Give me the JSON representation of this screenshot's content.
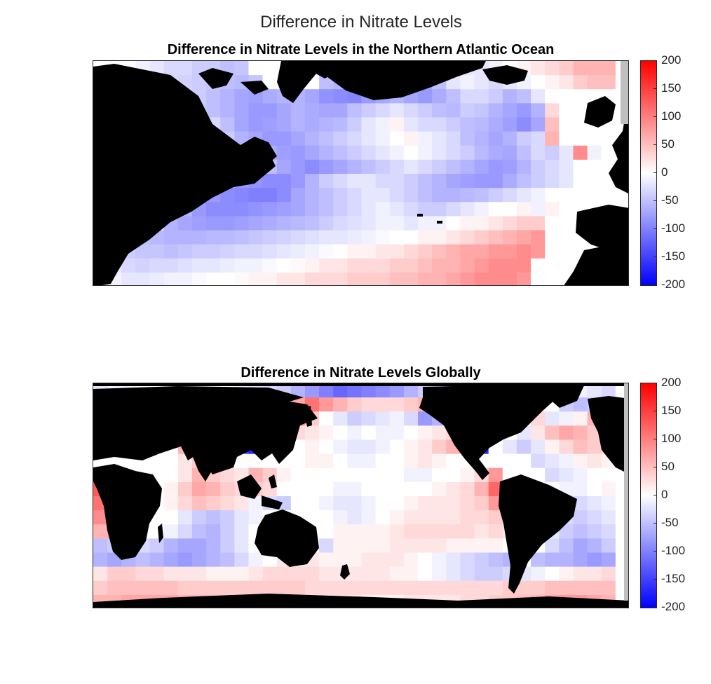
{
  "figure": {
    "title": "Difference in Nitrate Levels"
  },
  "colormap": {
    "low": "#0000ff",
    "mid": "#ffffff",
    "high": "#ff0000",
    "land": "#000000",
    "nodata": "#bfbfbf"
  },
  "chart_data": [
    {
      "type": "heatmap",
      "title": "Difference in Nitrate Levels in the Northern Atlantic Ocean",
      "xlabel": "",
      "ylabel": "",
      "clim": [
        -200,
        200
      ],
      "colorbar_ticks": [
        "200",
        "150",
        "100",
        "50",
        "0",
        "-50",
        "-100",
        "-150",
        "-200"
      ],
      "grid_cols": 38,
      "grid_rows": 16,
      "values": [
        [
          0,
          0,
          0,
          -10,
          -20,
          -30,
          -30,
          -40,
          -40,
          -50,
          -45,
          0,
          0,
          0,
          0,
          0,
          -40,
          -50,
          -60,
          -50,
          -40,
          -30,
          -20,
          -20,
          -10,
          -10,
          -20,
          -20,
          -10,
          0,
          10,
          20,
          30,
          40,
          60,
          60,
          60,
          0
        ],
        [
          0,
          0,
          0,
          0,
          -15,
          -30,
          -35,
          -40,
          -45,
          -50,
          -55,
          -45,
          0,
          0,
          0,
          0,
          -50,
          -60,
          -80,
          -80,
          -70,
          -60,
          -60,
          -70,
          -50,
          -20,
          -10,
          -20,
          -30,
          -20,
          -10,
          0,
          10,
          20,
          40,
          50,
          50,
          0
        ],
        [
          0,
          0,
          0,
          0,
          0,
          0,
          -30,
          -40,
          -50,
          -60,
          -70,
          -75,
          -65,
          -60,
          -60,
          -70,
          -85,
          -90,
          -95,
          -80,
          -70,
          -60,
          -70,
          -80,
          -65,
          -50,
          -30,
          -30,
          -40,
          -60,
          -50,
          -20,
          0,
          0,
          0,
          0,
          0,
          0
        ],
        [
          0,
          0,
          0,
          0,
          0,
          0,
          -20,
          -40,
          -50,
          -60,
          -70,
          -80,
          -80,
          -70,
          -60,
          -65,
          -70,
          -70,
          -50,
          -40,
          -30,
          -20,
          -30,
          -40,
          -50,
          -55,
          -40,
          -45,
          -60,
          -70,
          -80,
          -60,
          30,
          0,
          0,
          0,
          0,
          0
        ],
        [
          0,
          0,
          0,
          0,
          0,
          0,
          0,
          0,
          -30,
          -50,
          -70,
          -80,
          -75,
          -70,
          -60,
          -65,
          -60,
          -55,
          -40,
          -20,
          -10,
          10,
          -20,
          -30,
          -30,
          -40,
          -50,
          -55,
          -65,
          -75,
          -90,
          -70,
          50,
          0,
          0,
          0,
          0,
          0
        ],
        [
          0,
          0,
          0,
          0,
          0,
          0,
          0,
          0,
          -20,
          -40,
          -60,
          -70,
          -80,
          -80,
          -70,
          -60,
          -50,
          -40,
          -30,
          -20,
          -10,
          0,
          10,
          -10,
          -20,
          -30,
          -50,
          -60,
          -70,
          -60,
          -40,
          -30,
          60,
          0,
          0,
          0,
          0,
          0
        ],
        [
          0,
          0,
          0,
          0,
          0,
          0,
          0,
          20,
          30,
          10,
          -30,
          -50,
          -65,
          -75,
          -80,
          -70,
          -60,
          -50,
          -40,
          -30,
          -20,
          -10,
          0,
          -10,
          -20,
          -30,
          -40,
          -55,
          -65,
          -70,
          -50,
          -30,
          -40,
          -20,
          90,
          -10,
          0,
          0
        ],
        [
          0,
          0,
          0,
          0,
          0,
          0,
          30,
          40,
          30,
          20,
          0,
          -30,
          -50,
          -70,
          -80,
          -90,
          -80,
          -70,
          -60,
          -50,
          -40,
          -30,
          -20,
          -30,
          -40,
          -50,
          -60,
          -70,
          -80,
          -75,
          -60,
          -40,
          -30,
          -20,
          0,
          0,
          0,
          0
        ],
        [
          0,
          0,
          0,
          0,
          0,
          10,
          10,
          0,
          -40,
          -70,
          -80,
          -85,
          -90,
          -90,
          -80,
          -60,
          -40,
          -30,
          -20,
          -20,
          -30,
          -30,
          -40,
          -50,
          -60,
          -70,
          -75,
          -80,
          -80,
          -65,
          -50,
          -40,
          -30,
          -20,
          0,
          0,
          0,
          0
        ],
        [
          0,
          0,
          0,
          0,
          10,
          20,
          -10,
          -50,
          -80,
          -90,
          -95,
          -100,
          -100,
          -90,
          -70,
          -60,
          -50,
          -40,
          -30,
          -20,
          -20,
          -30,
          -40,
          -50,
          -60,
          -60,
          -55,
          -50,
          -40,
          -30,
          -20,
          -10,
          0,
          0,
          0,
          0,
          0,
          0
        ],
        [
          0,
          0,
          0,
          10,
          20,
          -10,
          -60,
          -80,
          -90,
          -90,
          -90,
          -85,
          -80,
          -75,
          -70,
          -60,
          -50,
          -40,
          -30,
          -20,
          -10,
          -20,
          -30,
          -40,
          -40,
          -30,
          -20,
          -10,
          0,
          0,
          10,
          -10,
          10,
          0,
          0,
          0,
          0,
          0
        ],
        [
          0,
          0,
          0,
          20,
          -20,
          -60,
          -70,
          -75,
          -80,
          -80,
          -75,
          -70,
          -65,
          -60,
          -55,
          -50,
          -40,
          -30,
          -25,
          -20,
          -10,
          -10,
          -20,
          -10,
          -10,
          0,
          10,
          10,
          20,
          30,
          40,
          40,
          0,
          0,
          0,
          0,
          0,
          0
        ],
        [
          0,
          0,
          -20,
          -50,
          -55,
          -60,
          -60,
          -60,
          -55,
          -55,
          -50,
          -45,
          -40,
          -35,
          -30,
          -25,
          -20,
          -20,
          -15,
          -10,
          -5,
          0,
          0,
          10,
          10,
          20,
          30,
          40,
          50,
          60,
          70,
          80,
          0,
          0,
          0,
          0,
          0,
          0
        ],
        [
          0,
          0,
          -40,
          -45,
          -45,
          -50,
          -45,
          -40,
          -40,
          -35,
          -30,
          -30,
          -25,
          -20,
          -15,
          -10,
          -5,
          0,
          10,
          10,
          20,
          20,
          30,
          40,
          50,
          60,
          70,
          70,
          80,
          80,
          90,
          80,
          0,
          0,
          0,
          0,
          0,
          0
        ],
        [
          0,
          -20,
          -30,
          -35,
          -30,
          -30,
          -25,
          -20,
          -20,
          -15,
          -10,
          -10,
          -5,
          0,
          5,
          10,
          20,
          20,
          30,
          30,
          30,
          40,
          40,
          50,
          60,
          60,
          70,
          80,
          90,
          90,
          90,
          0,
          0,
          0,
          0,
          0,
          0,
          0
        ],
        [
          40,
          -10,
          -20,
          -20,
          -15,
          -10,
          -10,
          -5,
          0,
          0,
          5,
          10,
          10,
          20,
          20,
          30,
          30,
          30,
          40,
          40,
          40,
          50,
          50,
          60,
          60,
          70,
          80,
          90,
          90,
          90,
          80,
          0,
          0,
          0,
          0,
          0,
          0,
          0
        ]
      ]
    },
    {
      "type": "heatmap",
      "title": "Difference in Nitrate Levels Globally",
      "xlabel": "",
      "ylabel": "",
      "clim": [
        -200,
        200
      ],
      "colorbar_ticks": [
        "200",
        "150",
        "100",
        "50",
        "0",
        "-50",
        "-100",
        "-150",
        "-200"
      ],
      "grid_cols": 38,
      "grid_rows": 16,
      "values": [
        [
          -20,
          -10,
          -10,
          0,
          0,
          0,
          0,
          0,
          0,
          0,
          -10,
          -20,
          -30,
          -40,
          -60,
          -80,
          -100,
          -120,
          -110,
          -100,
          -90,
          -80,
          -60,
          -40,
          -30,
          -30,
          -40,
          -50,
          -60,
          -60,
          -50,
          -30,
          -20,
          -10,
          -10,
          -20,
          -30,
          0
        ],
        [
          0,
          0,
          0,
          0,
          0,
          0,
          0,
          0,
          0,
          0,
          0,
          0,
          0,
          0,
          70,
          110,
          80,
          60,
          40,
          30,
          30,
          30,
          40,
          60,
          80,
          90,
          80,
          70,
          0,
          0,
          0,
          0,
          0,
          -40,
          -50,
          -40,
          20,
          0
        ],
        [
          0,
          0,
          0,
          0,
          0,
          0,
          0,
          0,
          0,
          0,
          0,
          0,
          0,
          0,
          80,
          40,
          0,
          -20,
          -40,
          -30,
          -20,
          -10,
          -30,
          -80,
          -60,
          -40,
          -20,
          0,
          0,
          0,
          0,
          30,
          -20,
          -10,
          10,
          60,
          40,
          0
        ],
        [
          0,
          0,
          0,
          0,
          0,
          0,
          0,
          -150,
          0,
          0,
          -180,
          -180,
          0,
          0,
          30,
          20,
          10,
          0,
          -10,
          0,
          -10,
          -10,
          0,
          10,
          20,
          30,
          20,
          0,
          0,
          0,
          -20,
          20,
          50,
          70,
          60,
          40,
          20,
          0
        ],
        [
          0,
          0,
          0,
          0,
          0,
          0,
          60,
          0,
          0,
          0,
          -160,
          -170,
          0,
          0,
          0,
          10,
          0,
          -10,
          -20,
          -20,
          -10,
          0,
          10,
          20,
          40,
          60,
          40,
          -170,
          0,
          -20,
          -40,
          -20,
          10,
          30,
          50,
          40,
          30,
          0
        ],
        [
          0,
          0,
          0,
          0,
          0,
          0,
          20,
          40,
          10,
          0,
          0,
          0,
          0,
          0,
          0,
          10,
          10,
          0,
          -10,
          -10,
          0,
          0,
          10,
          20,
          10,
          0,
          0,
          0,
          0,
          0,
          0,
          -30,
          -20,
          -10,
          10,
          20,
          10,
          0
        ],
        [
          120,
          0,
          0,
          0,
          0,
          0,
          20,
          60,
          40,
          30,
          20,
          60,
          40,
          10,
          0,
          0,
          0,
          0,
          0,
          0,
          0,
          0,
          -10,
          -10,
          0,
          0,
          10,
          30,
          80,
          0,
          0,
          0,
          -30,
          -20,
          -10,
          0,
          0,
          0
        ],
        [
          130,
          0,
          0,
          0,
          0,
          10,
          40,
          70,
          60,
          40,
          30,
          40,
          30,
          0,
          0,
          0,
          0,
          -10,
          -10,
          0,
          0,
          0,
          0,
          0,
          10,
          20,
          30,
          60,
          120,
          0,
          0,
          0,
          0,
          -10,
          -10,
          0,
          10,
          0
        ],
        [
          110,
          0,
          0,
          0,
          0,
          10,
          30,
          50,
          40,
          30,
          20,
          -10,
          -30,
          -40,
          0,
          0,
          -10,
          -20,
          -20,
          -10,
          0,
          0,
          10,
          20,
          20,
          20,
          30,
          40,
          80,
          0,
          0,
          0,
          0,
          -20,
          -30,
          -20,
          -10,
          0
        ],
        [
          90,
          0,
          0,
          0,
          0,
          0,
          -20,
          -40,
          -50,
          -40,
          -20,
          -10,
          0,
          0,
          0,
          0,
          0,
          -10,
          -20,
          -10,
          0,
          10,
          20,
          20,
          20,
          20,
          30,
          30,
          40,
          30,
          0,
          0,
          0,
          -30,
          -40,
          -30,
          -20,
          0
        ],
        [
          60,
          70,
          0,
          0,
          0,
          -10,
          -30,
          -50,
          -60,
          -40,
          -20,
          0,
          0,
          0,
          0,
          0,
          0,
          10,
          10,
          10,
          10,
          20,
          30,
          30,
          30,
          30,
          30,
          20,
          30,
          20,
          0,
          0,
          -20,
          -40,
          -50,
          -40,
          -30,
          0
        ],
        [
          -50,
          -40,
          -30,
          -30,
          -40,
          -60,
          -70,
          -70,
          -60,
          -40,
          -20,
          0,
          0,
          0,
          0,
          0,
          -30,
          10,
          10,
          10,
          10,
          20,
          20,
          20,
          20,
          10,
          10,
          10,
          10,
          0,
          0,
          0,
          -30,
          -50,
          -70,
          -60,
          -40,
          0
        ],
        [
          -60,
          -70,
          -60,
          -50,
          -60,
          -70,
          -80,
          -70,
          -60,
          -50,
          -30,
          -10,
          0,
          20,
          20,
          20,
          10,
          10,
          10,
          20,
          20,
          20,
          10,
          0,
          -10,
          -20,
          -30,
          -40,
          -50,
          -60,
          0,
          -50,
          -60,
          -60,
          -70,
          -80,
          -70,
          0
        ],
        [
          20,
          40,
          40,
          30,
          30,
          20,
          20,
          20,
          10,
          10,
          10,
          20,
          30,
          30,
          30,
          30,
          20,
          20,
          20,
          20,
          20,
          10,
          10,
          0,
          -10,
          -20,
          -30,
          -40,
          -40,
          -30,
          -20,
          -10,
          0,
          10,
          20,
          20,
          30,
          0
        ],
        [
          40,
          50,
          50,
          50,
          50,
          50,
          40,
          40,
          40,
          40,
          40,
          40,
          40,
          40,
          40,
          30,
          30,
          30,
          30,
          30,
          30,
          30,
          30,
          30,
          30,
          30,
          30,
          30,
          30,
          40,
          40,
          40,
          50,
          50,
          50,
          50,
          50,
          0
        ],
        [
          60,
          60,
          70,
          70,
          70,
          70,
          60,
          60,
          50,
          50,
          40,
          40,
          40,
          40,
          30,
          30,
          20,
          20,
          20,
          10,
          10,
          10,
          20,
          20,
          20,
          20,
          30,
          30,
          40,
          40,
          50,
          60,
          70,
          80,
          80,
          70,
          60,
          0
        ]
      ]
    }
  ]
}
